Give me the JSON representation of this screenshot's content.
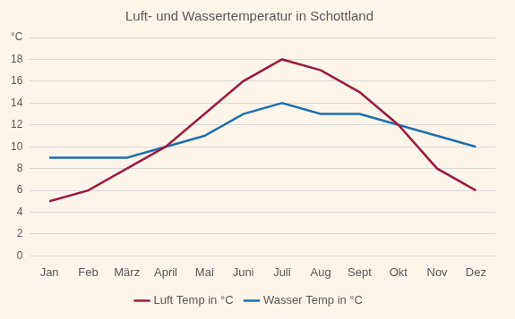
{
  "chart_data": {
    "type": "line",
    "title": "Luft- und Wassertemperatur in Schottland",
    "categories": [
      "Jan",
      "Feb",
      "März",
      "April",
      "Mai",
      "Juni",
      "Juli",
      "Aug",
      "Sept",
      "Okt",
      "Nov",
      "Dez"
    ],
    "series": [
      {
        "name": "Luft Temp in °C",
        "color": "#9b1c3f",
        "values": [
          5,
          6,
          8,
          10,
          13,
          16,
          18,
          17,
          15,
          12,
          8,
          6
        ]
      },
      {
        "name": "Wasser Temp in °C",
        "color": "#1f6fb0",
        "values": [
          9,
          9,
          9,
          10,
          11,
          13,
          14,
          13,
          13,
          12,
          11,
          10
        ]
      }
    ],
    "ylim": [
      0,
      20
    ],
    "yticks": [
      0,
      2,
      4,
      6,
      8,
      10,
      12,
      14,
      16,
      18,
      {
        "value": 20,
        "label": "°C"
      }
    ],
    "grid": true,
    "legend": "bottom"
  }
}
